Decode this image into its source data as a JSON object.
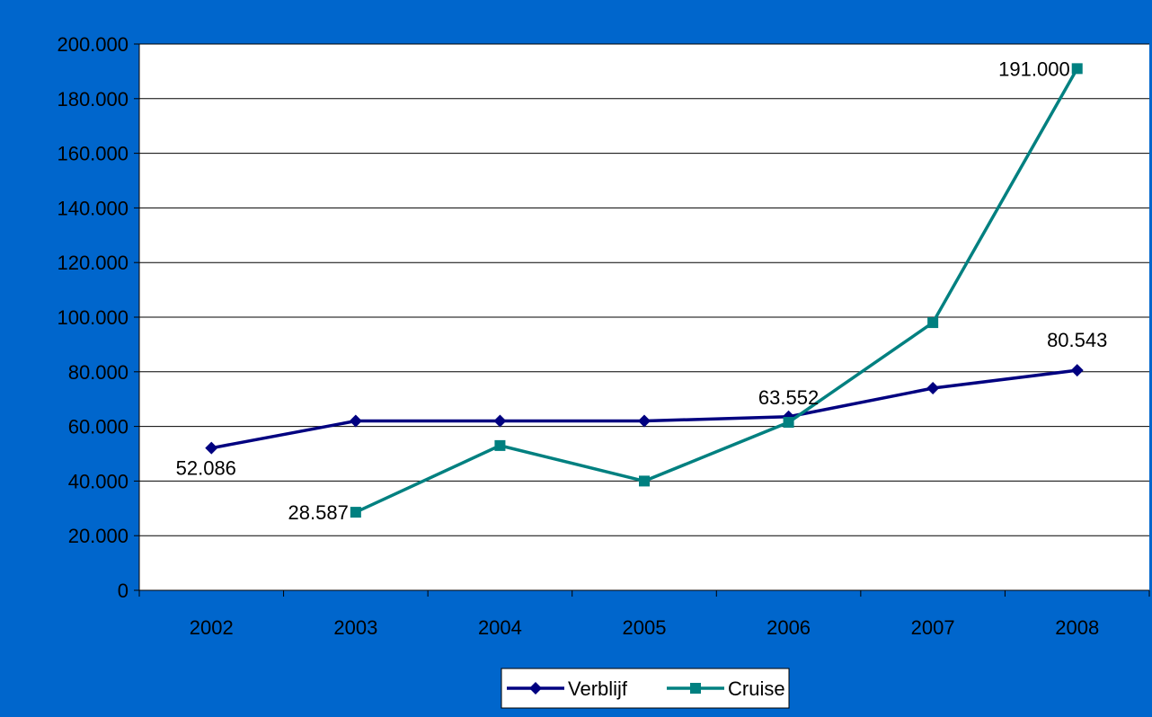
{
  "colors": {
    "background": "#0066CC",
    "plot_area": "#FFFFFF",
    "gridline": "#000000",
    "verblijf": "#000080",
    "cruise": "#008080"
  },
  "chart_data": {
    "type": "line",
    "title": "",
    "xlabel": "",
    "ylabel": "",
    "categories": [
      "2002",
      "2003",
      "2004",
      "2005",
      "2006",
      "2007",
      "2008"
    ],
    "ylim": [
      0,
      200000
    ],
    "yticks": [
      0,
      20000,
      40000,
      60000,
      80000,
      100000,
      120000,
      140000,
      160000,
      180000,
      200000
    ],
    "ytick_labels": [
      "0",
      "20.000",
      "40.000",
      "60.000",
      "80.000",
      "100.000",
      "120.000",
      "140.000",
      "160.000",
      "180.000",
      "200.000"
    ],
    "grid": true,
    "legend_position": "bottom",
    "series": [
      {
        "name": "Verblijf",
        "marker": "diamond",
        "color": "#000080",
        "values": [
          52086,
          62000,
          62000,
          62000,
          63552,
          74000,
          80543
        ],
        "data_labels": [
          "52.086",
          null,
          null,
          null,
          "63.552",
          null,
          "80.543"
        ]
      },
      {
        "name": "Cruise",
        "marker": "square",
        "color": "#008080",
        "values": [
          null,
          28587,
          53000,
          40000,
          61500,
          98000,
          191000
        ],
        "data_labels": [
          null,
          "28.587",
          null,
          null,
          null,
          null,
          "191.000"
        ]
      }
    ]
  }
}
